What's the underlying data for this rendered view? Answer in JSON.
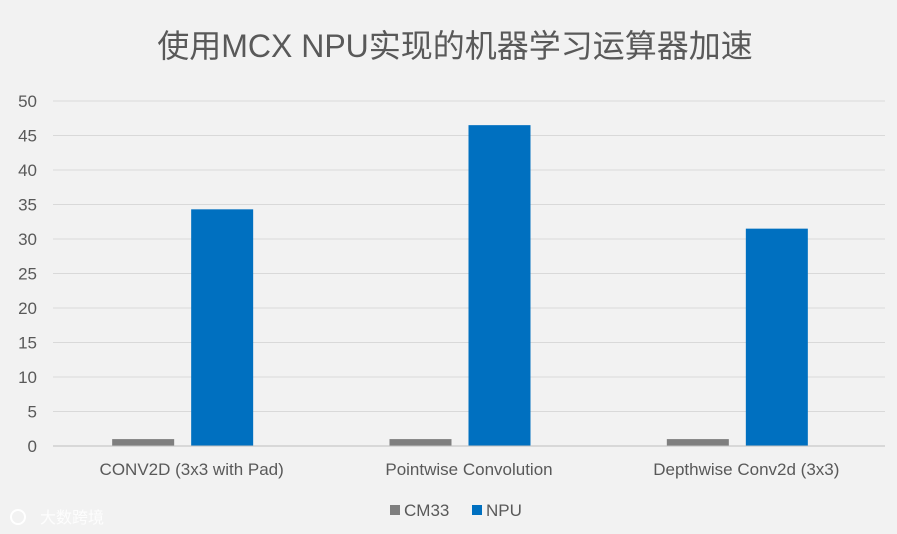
{
  "chart_data": {
    "type": "bar",
    "title": "使用MCX NPU实现的机器学习运算器加速",
    "categories": [
      "CONV2D (3x3 with Pad)",
      "Pointwise Convolution",
      "Depthwise Conv2d (3x3)"
    ],
    "series": [
      {
        "name": "CM33",
        "values": [
          1,
          1,
          1
        ],
        "color": "#7f7f7f"
      },
      {
        "name": "NPU",
        "values": [
          34.3,
          46.5,
          31.5
        ],
        "color": "#0070c0"
      }
    ],
    "ylim": [
      0,
      50
    ],
    "yticks": [
      0,
      5,
      10,
      15,
      20,
      25,
      30,
      35,
      40,
      45,
      50
    ],
    "grid": true,
    "legend_position": "bottom"
  },
  "watermark": "大数跨境"
}
